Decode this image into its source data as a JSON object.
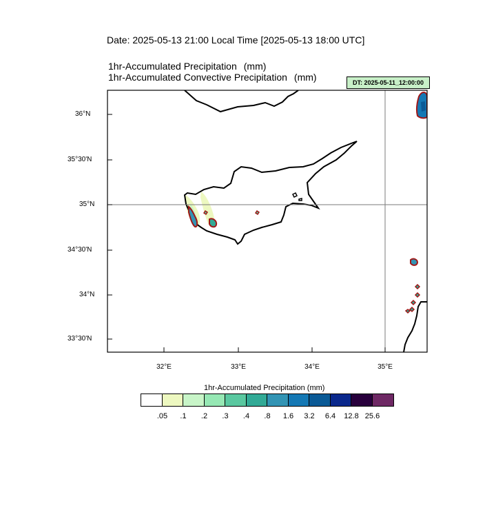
{
  "header": {
    "date_line": "Date: 2025-05-13  21:00 Local Time [2025-05-13  18:00 UTC]",
    "field1": "1hr-Accumulated Precipitation",
    "field1_unit": "(mm)",
    "field2": "1hr-Accumulated Convective Precipitation",
    "field2_unit": "(mm)",
    "dt_badge": "DT: 2025-05-11_12:00:00"
  },
  "map": {
    "lat_labels": [
      "36°N",
      "35°30'N",
      "35°N",
      "34°30'N",
      "34°N",
      "33°30'N"
    ],
    "lon_labels": [
      "32°E",
      "33°E",
      "34°E",
      "35°E"
    ],
    "reference_lines": {
      "latitude": "35°N",
      "longitude": "35°E"
    },
    "colors": {
      "coastline": "#000000",
      "convective_contour": "#a01818",
      "grid_line": "#7a7a7a"
    }
  },
  "colorbar": {
    "title": "1hr-Accumulated Precipitation  (mm)",
    "colors": [
      "#ffffff",
      "#edf8c0",
      "#c8f5c8",
      "#96e8b4",
      "#5ac8a0",
      "#32aa96",
      "#3294b4",
      "#1478b4",
      "#0a5a96",
      "#0a288c",
      "#28003c",
      "#6e2864"
    ],
    "labels": [
      ".05",
      ".1",
      ".2",
      ".3",
      ".4",
      ".8",
      "1.6",
      "3.2",
      "6.4",
      "12.8",
      "25.6"
    ]
  }
}
